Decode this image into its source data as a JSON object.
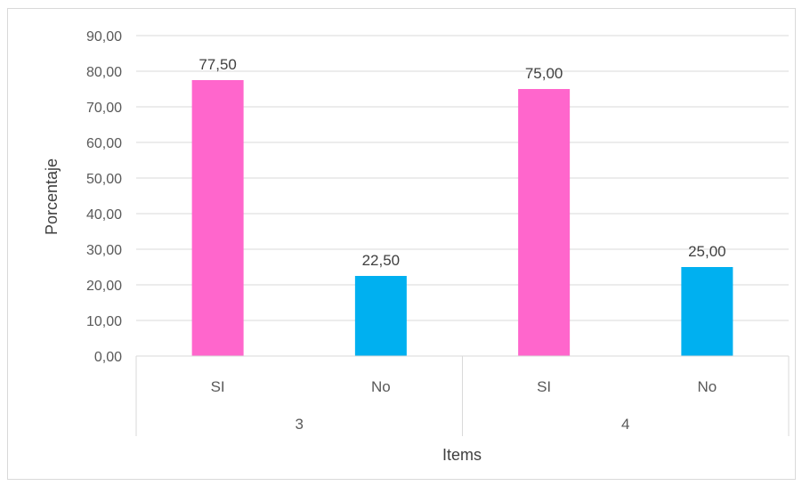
{
  "chart_data": {
    "type": "bar",
    "xlabel": "Items",
    "ylabel": "Porcentaje",
    "ylim": [
      0,
      90
    ],
    "yticks": [
      "0,00",
      "10,00",
      "20,00",
      "30,00",
      "40,00",
      "50,00",
      "60,00",
      "70,00",
      "80,00",
      "90,00"
    ],
    "groups": [
      {
        "label": "3",
        "bars": [
          {
            "category": "SI",
            "value": 77.5,
            "label": "77,50",
            "color": "#FF66CC"
          },
          {
            "category": "No",
            "value": 22.5,
            "label": "22,50",
            "color": "#00B0F0"
          }
        ]
      },
      {
        "label": "4",
        "bars": [
          {
            "category": "SI",
            "value": 75.0,
            "label": "75,00",
            "color": "#FF66CC"
          },
          {
            "category": "No",
            "value": 25.0,
            "label": "25,00",
            "color": "#00B0F0"
          }
        ]
      }
    ],
    "grid": true,
    "gridColor": "#d9d9d9"
  }
}
